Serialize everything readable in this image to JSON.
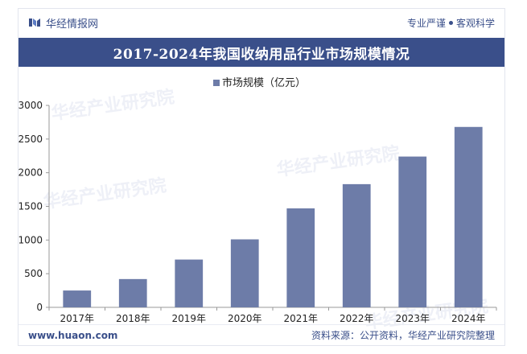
{
  "header": {
    "brand": "华经情报网",
    "slogan_left": "专业严谨",
    "slogan_right": "客观科学"
  },
  "title": "2017-2024年我国收纳用品行业市场规模情况",
  "watermark": "华经产业研究院",
  "footer": {
    "site": "www.huaon.com",
    "source": "资料来源：公开资料，华经产业研究院整理"
  },
  "colors": {
    "brand": "#3a4f8a",
    "bar": "#6d7ca8",
    "axis": "#999999",
    "tick_text": "#222222"
  },
  "chart_data": {
    "type": "bar",
    "title": "2017-2024年我国收纳用品行业市场规模情况",
    "legend": {
      "label": "市场规模（亿元）",
      "position": "top-center"
    },
    "categories": [
      "2017年",
      "2018年",
      "2019年",
      "2020年",
      "2021年",
      "2022年",
      "2023年",
      "2024年"
    ],
    "series": [
      {
        "name": "市场规模（亿元）",
        "values": [
          250,
          420,
          710,
          1010,
          1470,
          1830,
          2240,
          2680
        ]
      }
    ],
    "ylim": [
      0,
      3000
    ],
    "yticks": [
      0,
      500,
      1000,
      1500,
      2000,
      2500,
      3000
    ],
    "xlabel": "",
    "ylabel": "",
    "grid": false
  }
}
